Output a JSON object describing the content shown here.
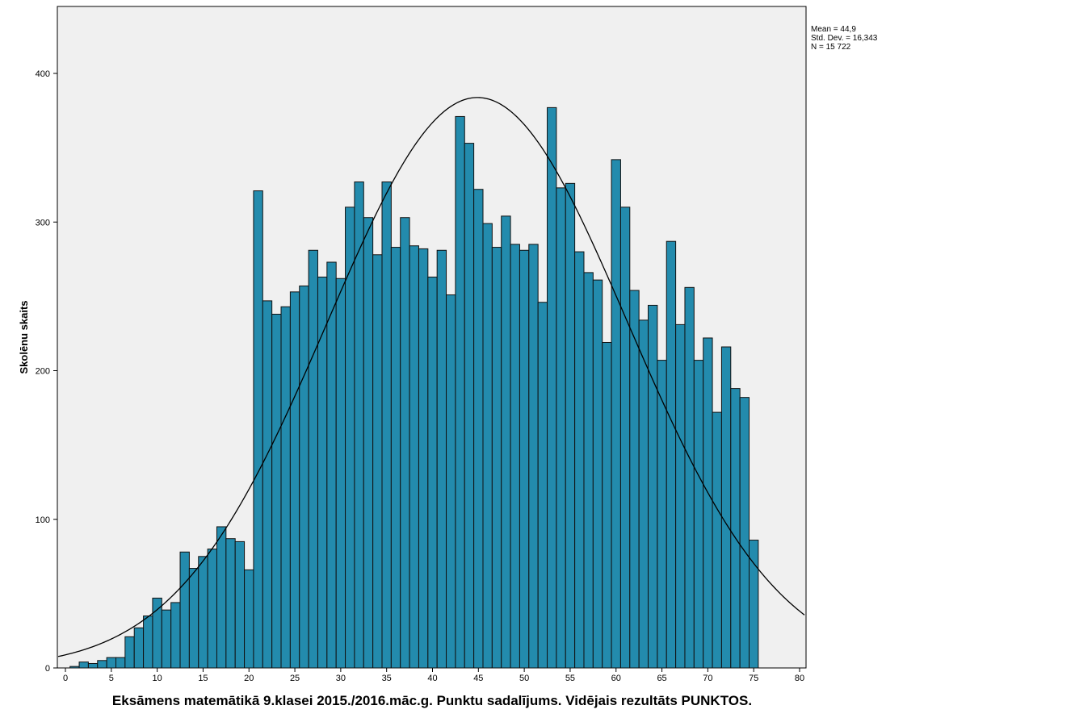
{
  "chart_data": {
    "type": "bar",
    "subtype": "histogram-with-normal-curve",
    "title": "Eksāmens matemātikā 9.klasei 2015./2016.māc.g. Punktu sadalījums. Vidējais rezultāts PUNKTOS.",
    "xlabel": "Eksāmens matemātikā 9.klasei 2015./2016.māc.g. Punktu sadalījums. Vidējais rezultāts PUNKTOS.",
    "ylabel": "Skolēnu skaits",
    "xlim": [
      -0.9,
      80.7
    ],
    "ylim": [
      0,
      445
    ],
    "xticks": [
      0,
      5,
      10,
      15,
      20,
      25,
      30,
      35,
      40,
      45,
      50,
      55,
      60,
      65,
      70,
      75,
      80
    ],
    "yticks": [
      0,
      100,
      200,
      300,
      400
    ],
    "grid": false,
    "bar_color": "#238bad",
    "background": "#f0f0f0",
    "x": [
      1,
      2,
      3,
      4,
      5,
      6,
      7,
      8,
      9,
      10,
      11,
      12,
      13,
      14,
      15,
      16,
      17,
      18,
      19,
      20,
      21,
      22,
      23,
      24,
      25,
      26,
      27,
      28,
      29,
      30,
      31,
      32,
      33,
      34,
      35,
      36,
      37,
      38,
      39,
      40,
      41,
      42,
      43,
      44,
      45,
      46,
      47,
      48,
      49,
      50,
      51,
      52,
      53,
      54,
      55,
      56,
      57,
      58,
      59,
      60,
      61,
      62,
      63,
      64,
      65,
      66,
      67,
      68,
      69,
      70,
      71,
      72,
      73,
      74,
      75
    ],
    "values": [
      1,
      4,
      3,
      5,
      7,
      7,
      21,
      27,
      35,
      47,
      39,
      44,
      78,
      67,
      75,
      80,
      95,
      87,
      85,
      66,
      321,
      247,
      238,
      243,
      253,
      257,
      281,
      263,
      273,
      262,
      310,
      327,
      303,
      278,
      327,
      283,
      303,
      284,
      282,
      263,
      281,
      251,
      371,
      353,
      322,
      299,
      283,
      304,
      285,
      281,
      285,
      246,
      377,
      323,
      326,
      280,
      266,
      261,
      219,
      342,
      310,
      254,
      234,
      244,
      207,
      287,
      231,
      256,
      207,
      222,
      172,
      216,
      188,
      182,
      86
    ],
    "normal_curve": {
      "mean": 44.9,
      "sd": 16.343,
      "n": 15722,
      "bin_width": 1
    },
    "stats_labels": [
      "Mean = 44,9",
      "Std. Dev. = 16,343",
      "N = 15 722"
    ]
  }
}
